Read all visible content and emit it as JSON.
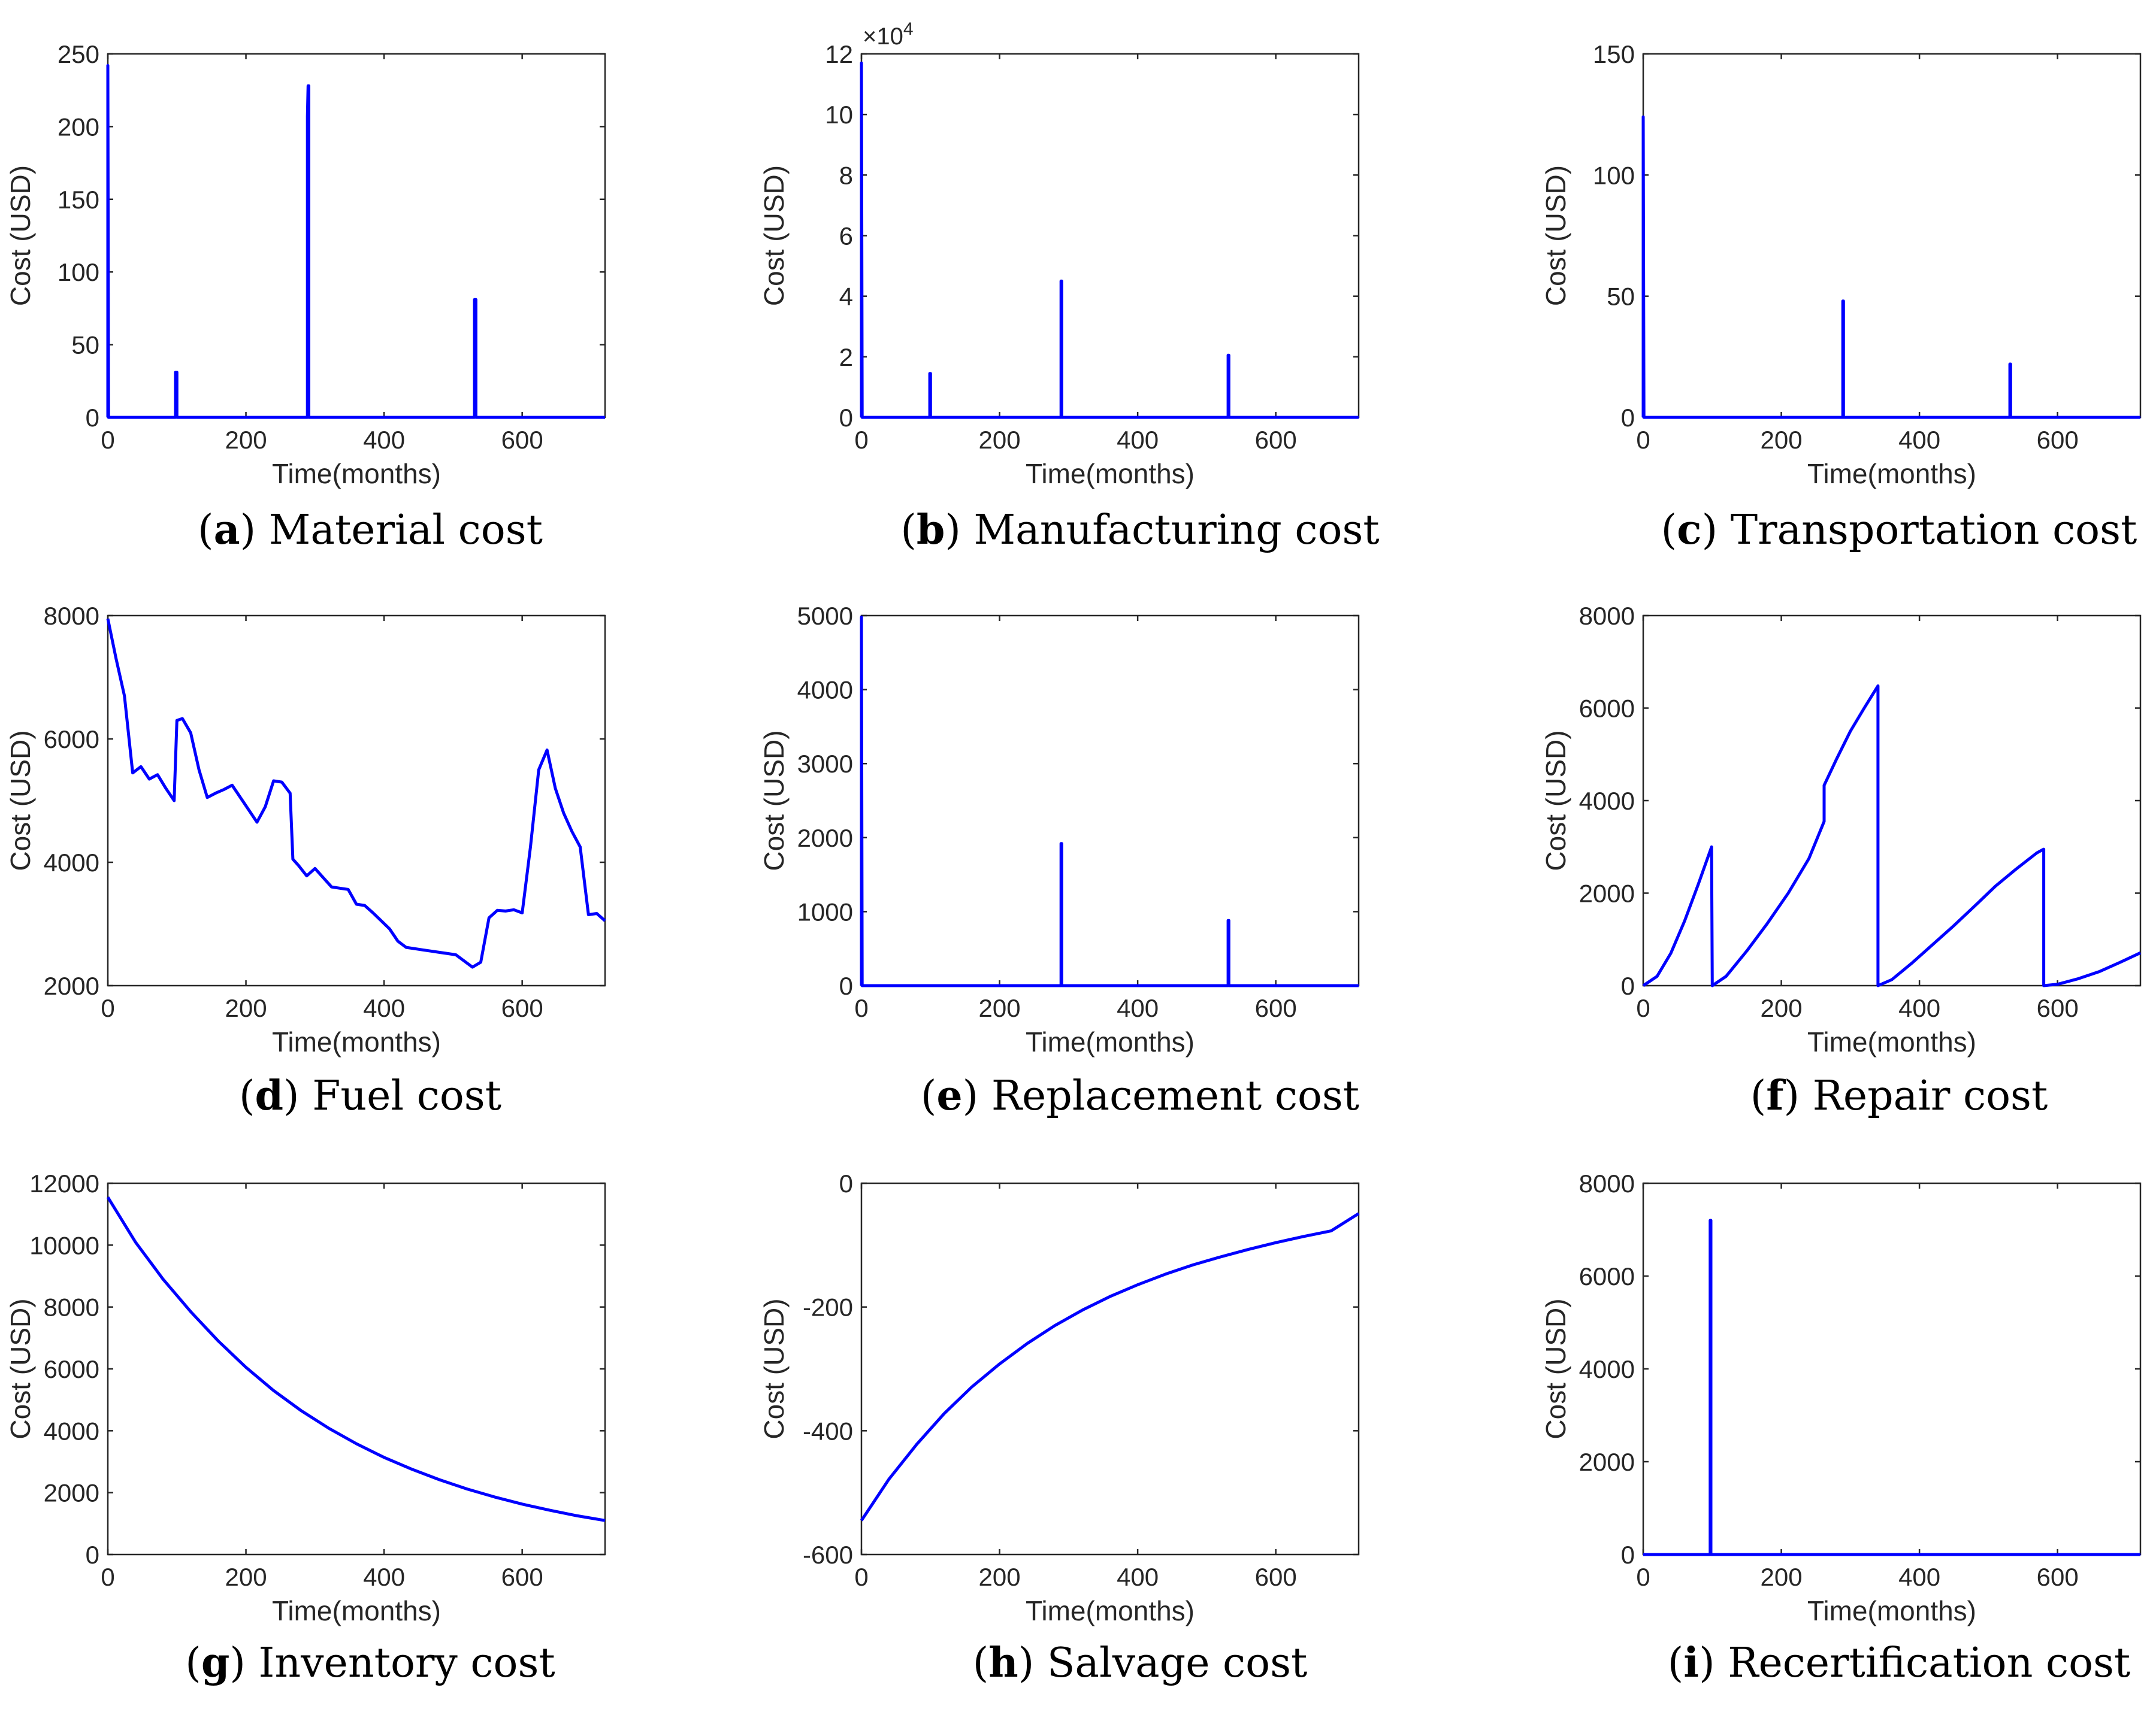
{
  "figure": {
    "line_color": "#0000ff",
    "axis_color": "#262626"
  },
  "chart_data": [
    {
      "panel": "a",
      "caption_letter": "a",
      "caption_text": " Material cost",
      "type": "line",
      "xlabel": "Time(months)",
      "ylabel": "Cost (USD)",
      "xlim": [
        0,
        720
      ],
      "ylim": [
        0,
        250
      ],
      "xticks": [
        0,
        200,
        400,
        600
      ],
      "yticks": [
        0,
        50,
        100,
        150,
        200,
        250
      ],
      "exponent": "",
      "series": [
        {
          "x": [
            0,
            0,
            1,
            98,
            98,
            99,
            100,
            100,
            101,
            289,
            289,
            290,
            291,
            291,
            292,
            531,
            531,
            532,
            533,
            533,
            534,
            720
          ],
          "y": [
            0,
            242,
            0,
            0,
            31,
            31,
            31,
            0,
            0,
            0,
            207,
            228,
            228,
            0,
            0,
            0,
            81,
            81,
            81,
            0,
            0,
            0
          ]
        }
      ]
    },
    {
      "panel": "b",
      "caption_letter": "b",
      "caption_text": " Manufacturing cost",
      "type": "line",
      "xlabel": "Time(months)",
      "ylabel": "Cost (USD)",
      "xlim": [
        0,
        720
      ],
      "ylim": [
        0,
        12
      ],
      "xticks": [
        0,
        200,
        400,
        600
      ],
      "yticks": [
        0,
        2,
        4,
        6,
        8,
        10,
        12
      ],
      "exponent": "×10",
      "exponent_power": "4",
      "series": [
        {
          "x": [
            0,
            0,
            1,
            99,
            99,
            100,
            100,
            101,
            289,
            289,
            290,
            290,
            291,
            531,
            531,
            532,
            532,
            533,
            720
          ],
          "y": [
            0,
            11.7,
            0,
            0,
            1.45,
            1.45,
            0,
            0,
            0,
            4.5,
            4.5,
            0,
            0,
            0,
            2.05,
            2.05,
            0,
            0,
            0
          ]
        }
      ]
    },
    {
      "panel": "c",
      "caption_letter": "c",
      "caption_text": " Transportation cost",
      "type": "line",
      "xlabel": "Time(months)",
      "ylabel": "Cost (USD)",
      "xlim": [
        0,
        720
      ],
      "ylim": [
        0,
        150
      ],
      "xticks": [
        0,
        200,
        400,
        600
      ],
      "yticks": [
        0,
        50,
        100,
        150
      ],
      "exponent": "",
      "series": [
        {
          "x": [
            0,
            0,
            1,
            289,
            289,
            290,
            290,
            291,
            531,
            531,
            532,
            532,
            533,
            720
          ],
          "y": [
            0,
            124,
            0,
            0,
            48,
            48,
            0,
            0,
            0,
            22,
            22,
            0,
            0,
            0
          ]
        }
      ]
    },
    {
      "panel": "d",
      "caption_letter": "d",
      "caption_text": " Fuel cost",
      "type": "line",
      "xlabel": "Time(months)",
      "ylabel": "Cost (USD)",
      "xlim": [
        0,
        720
      ],
      "ylim": [
        2000,
        8000
      ],
      "xticks": [
        0,
        200,
        400,
        600
      ],
      "yticks": [
        2000,
        4000,
        6000,
        8000
      ],
      "exponent": "",
      "series": [
        {
          "x": [
            0,
            12,
            24,
            36,
            48,
            60,
            72,
            84,
            96,
            100,
            108,
            120,
            132,
            144,
            156,
            168,
            180,
            192,
            204,
            216,
            228,
            240,
            252,
            264,
            268,
            276,
            288,
            300,
            312,
            324,
            336,
            348,
            360,
            372,
            384,
            396,
            408,
            420,
            432,
            444,
            456,
            468,
            480,
            492,
            504,
            516,
            528,
            540,
            552,
            564,
            576,
            588,
            600,
            612,
            624,
            636,
            648,
            660,
            672,
            684,
            696,
            708,
            720
          ],
          "y": [
            7950,
            7300,
            6700,
            5450,
            5550,
            5350,
            5420,
            5200,
            5000,
            6300,
            6330,
            6100,
            5500,
            5050,
            5120,
            5180,
            5250,
            5050,
            4850,
            4650,
            4900,
            5320,
            5300,
            5120,
            4050,
            3950,
            3780,
            3900,
            3750,
            3600,
            3580,
            3560,
            3320,
            3300,
            3180,
            3050,
            2920,
            2720,
            2620,
            2600,
            2580,
            2560,
            2540,
            2520,
            2500,
            2400,
            2300,
            2380,
            3100,
            3220,
            3210,
            3230,
            3180,
            4250,
            5500,
            5820,
            5200,
            4800,
            4500,
            4250,
            3150,
            3170,
            3050
          ]
        }
      ]
    },
    {
      "panel": "e",
      "caption_letter": "e",
      "caption_text": " Replacement cost",
      "type": "line",
      "xlabel": "Time(months)",
      "ylabel": "Cost (USD)",
      "xlim": [
        0,
        720
      ],
      "ylim": [
        0,
        5000
      ],
      "xticks": [
        0,
        200,
        400,
        600
      ],
      "yticks": [
        0,
        1000,
        2000,
        3000,
        4000,
        5000
      ],
      "exponent": "",
      "series": [
        {
          "x": [
            0,
            0,
            1,
            289,
            289,
            290,
            290,
            291,
            531,
            531,
            532,
            532,
            533,
            720
          ],
          "y": [
            0,
            4980,
            0,
            0,
            1920,
            1920,
            0,
            0,
            0,
            880,
            880,
            0,
            0,
            0
          ]
        }
      ]
    },
    {
      "panel": "f",
      "caption_letter": "f",
      "caption_text": " Repair cost",
      "type": "line",
      "xlabel": "Time(months)",
      "ylabel": "Cost (USD)",
      "xlim": [
        0,
        720
      ],
      "ylim": [
        0,
        8000
      ],
      "xticks": [
        0,
        200,
        400,
        600
      ],
      "yticks": [
        0,
        2000,
        4000,
        6000,
        8000
      ],
      "exponent": "",
      "series": [
        {
          "x": [
            0,
            20,
            40,
            60,
            80,
            99,
            99,
            100,
            120,
            150,
            180,
            210,
            240,
            262,
            262,
            280,
            300,
            320,
            340,
            340,
            360,
            390,
            420,
            450,
            480,
            510,
            540,
            570,
            580,
            580,
            600,
            630,
            660,
            690,
            720
          ],
          "y": [
            0,
            200,
            700,
            1400,
            2200,
            3000,
            3000,
            0,
            200,
            750,
            1350,
            2000,
            2750,
            3550,
            4330,
            4900,
            5500,
            6000,
            6480,
            0,
            130,
            500,
            900,
            1300,
            1720,
            2150,
            2520,
            2870,
            2950,
            0,
            30,
            150,
            300,
            500,
            710
          ]
        }
      ]
    },
    {
      "panel": "g",
      "caption_letter": "g",
      "caption_text": " Inventory cost",
      "type": "line",
      "xlabel": "Time(months)",
      "ylabel": "Cost (USD)",
      "xlim": [
        0,
        720
      ],
      "ylim": [
        0,
        12000
      ],
      "xticks": [
        0,
        200,
        400,
        600
      ],
      "yticks": [
        0,
        2000,
        4000,
        6000,
        8000,
        10000,
        12000
      ],
      "exponent": "",
      "series": [
        {
          "x": [
            0,
            40,
            80,
            120,
            160,
            200,
            240,
            280,
            320,
            360,
            400,
            440,
            480,
            520,
            560,
            600,
            640,
            680,
            720
          ],
          "y": [
            11550,
            10100,
            8900,
            7850,
            6900,
            6050,
            5300,
            4650,
            4080,
            3580,
            3140,
            2760,
            2420,
            2120,
            1860,
            1630,
            1430,
            1250,
            1100
          ]
        }
      ]
    },
    {
      "panel": "h",
      "caption_letter": "h",
      "caption_text": " Salvage cost",
      "type": "line",
      "xlabel": "Time(months)",
      "ylabel": "Cost (USD)",
      "xlim": [
        0,
        720
      ],
      "ylim": [
        -600,
        0
      ],
      "xticks": [
        0,
        200,
        400,
        600
      ],
      "yticks": [
        -600,
        -400,
        -200,
        0
      ],
      "exponent": "",
      "series": [
        {
          "x": [
            0,
            40,
            80,
            120,
            160,
            200,
            240,
            280,
            320,
            360,
            400,
            440,
            480,
            520,
            560,
            600,
            640,
            680,
            720
          ],
          "y": [
            -545,
            -478,
            -422,
            -372,
            -329,
            -292,
            -259,
            -230,
            -205,
            -183,
            -164,
            -147,
            -132,
            -119,
            -107,
            -96,
            -86,
            -77,
            -49
          ]
        }
      ]
    },
    {
      "panel": "i",
      "caption_letter": "i",
      "caption_text": " Recertification cost",
      "type": "line",
      "xlabel": "Time(months)",
      "ylabel": "Cost (USD)",
      "xlim": [
        0,
        720
      ],
      "ylim": [
        0,
        8000
      ],
      "xticks": [
        0,
        200,
        400,
        600
      ],
      "yticks": [
        0,
        2000,
        4000,
        6000,
        8000
      ],
      "exponent": "",
      "series": [
        {
          "x": [
            0,
            97,
            97,
            98,
            98,
            99,
            720
          ],
          "y": [
            0,
            0,
            7200,
            7200,
            0,
            0,
            0
          ]
        }
      ]
    }
  ]
}
